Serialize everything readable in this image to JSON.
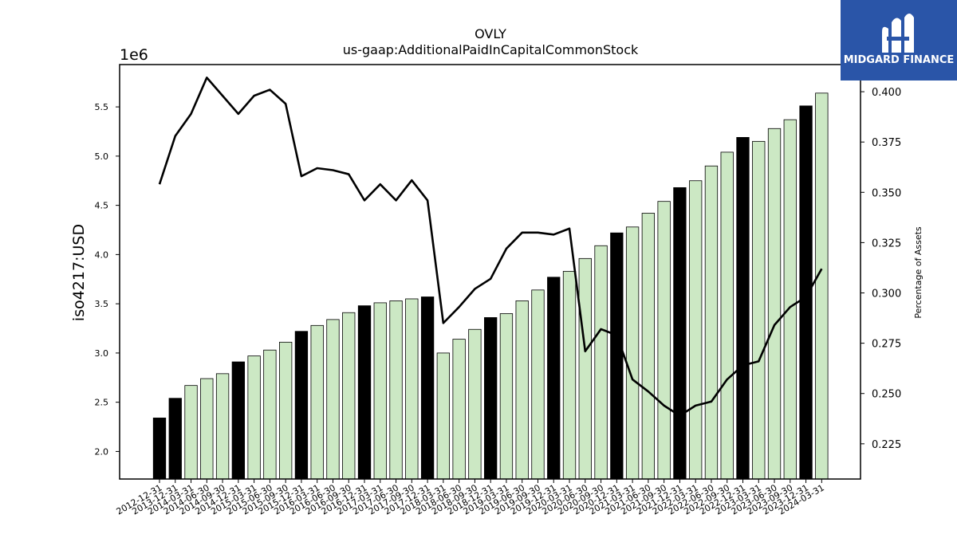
{
  "chart_data": {
    "type": "bar",
    "title": "OVLY",
    "subtitle": "us-gaap:AdditionalPaidInCapitalCommonStock",
    "ylabel": "iso4217:USD",
    "y2label": "Percentage of Assets",
    "y_offset_label": "1e6",
    "ylim": [
      1.72,
      5.93
    ],
    "y2lim": [
      0.2075,
      0.4135
    ],
    "y_ticks": [
      "2.0",
      "2.5",
      "3.0",
      "3.5",
      "4.0",
      "4.5",
      "5.0",
      "5.5"
    ],
    "y2_ticks": [
      "0.225",
      "0.250",
      "0.275",
      "0.300",
      "0.325",
      "0.350",
      "0.375",
      "0.400"
    ],
    "categories": [
      "2012-12-31",
      "2013-12-31",
      "2014-03-31",
      "2014-06-30",
      "2014-09-30",
      "2014-12-31",
      "2015-03-31",
      "2015-06-30",
      "2015-09-30",
      "2015-12-31",
      "2016-03-31",
      "2016-06-30",
      "2016-09-30",
      "2016-12-31",
      "2017-03-31",
      "2017-06-30",
      "2017-09-30",
      "2017-12-31",
      "2018-03-31",
      "2018-06-30",
      "2018-09-30",
      "2018-12-31",
      "2019-03-31",
      "2019-06-30",
      "2019-09-30",
      "2019-12-31",
      "2020-03-31",
      "2020-06-30",
      "2020-09-30",
      "2020-12-31",
      "2021-03-31",
      "2021-06-30",
      "2021-09-30",
      "2021-12-31",
      "2022-03-31",
      "2022-06-30",
      "2022-09-30",
      "2022-12-31",
      "2023-03-31",
      "2023-06-30",
      "2023-09-30",
      "2023-12-31",
      "2024-03-31"
    ],
    "series": [
      {
        "values": [
          2.34,
          2.54,
          2.67,
          2.74,
          2.79,
          2.91,
          2.97,
          3.03,
          3.11,
          3.22,
          3.28,
          3.34,
          3.41,
          3.48,
          3.51,
          3.53,
          3.55,
          3.57,
          3.0,
          3.14,
          3.24,
          3.36,
          3.4,
          3.53,
          3.64,
          3.77,
          3.83,
          3.96,
          4.09,
          4.22,
          4.28,
          4.42,
          4.54,
          4.68,
          4.75,
          4.9,
          5.04,
          5.19,
          5.15,
          5.28,
          5.37,
          5.51,
          5.64
        ],
        "highlight": [
          true,
          true,
          false,
          false,
          false,
          true,
          false,
          false,
          false,
          true,
          false,
          false,
          false,
          true,
          false,
          false,
          false,
          true,
          false,
          false,
          false,
          true,
          false,
          false,
          false,
          true,
          false,
          false,
          false,
          true,
          false,
          false,
          false,
          true,
          false,
          false,
          false,
          true,
          false,
          false,
          false,
          true,
          false
        ]
      },
      {
        "axis": "right",
        "values": [
          0.354,
          0.378,
          0.389,
          0.407,
          0.398,
          0.389,
          0.398,
          0.401,
          0.394,
          0.358,
          0.362,
          0.361,
          0.359,
          0.346,
          0.354,
          0.346,
          0.356,
          0.346,
          0.285,
          0.293,
          0.302,
          0.307,
          0.322,
          0.33,
          0.33,
          0.329,
          0.332,
          0.271,
          0.282,
          0.279,
          0.257,
          0.251,
          0.244,
          0.239,
          0.244,
          0.246,
          0.257,
          0.264,
          0.266,
          0.284,
          0.293,
          0.298,
          0.312
        ]
      }
    ],
    "colors": {
      "highlight_bar": "#000000",
      "bar": "#cce8c4",
      "line": "#000000"
    },
    "grid": false
  },
  "brand": {
    "name": "MIDGARD FINANCE"
  }
}
